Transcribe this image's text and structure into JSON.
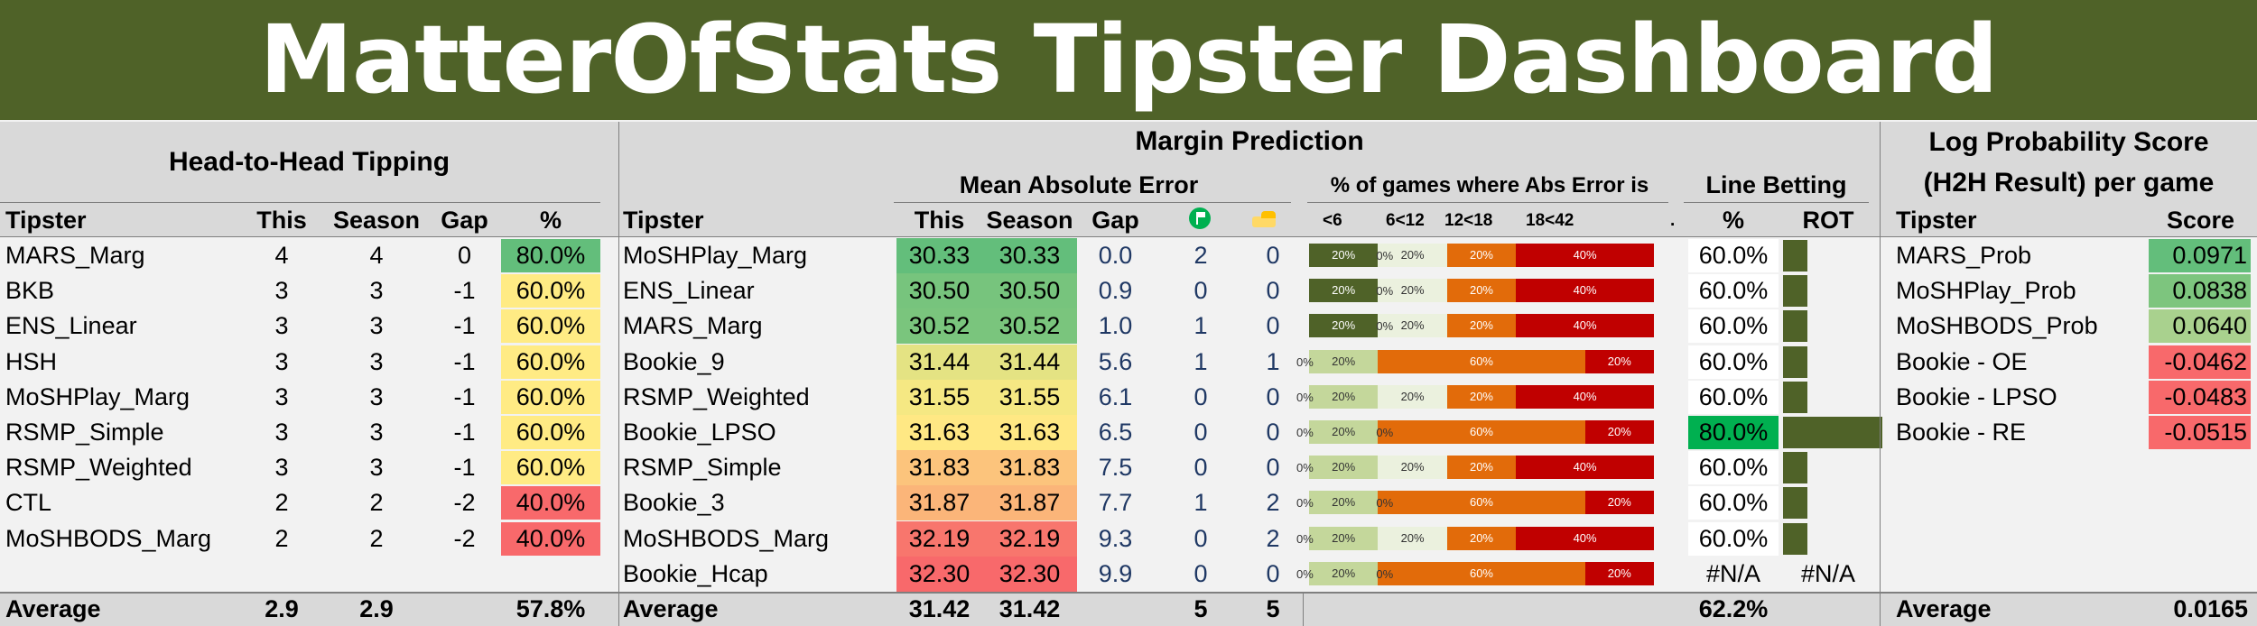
{
  "title": "MatterOfStats Tipster Dashboard",
  "h2h": {
    "heading": "Head-to-Head Tipping",
    "columns": [
      "Tipster",
      "This",
      "Season",
      "Gap",
      "%"
    ],
    "rows": [
      {
        "tipster": "MARS_Marg",
        "this": "4",
        "season": "4",
        "gap": "0",
        "pct": "80.0%",
        "pct_color": "#63be7b"
      },
      {
        "tipster": "BKB",
        "this": "3",
        "season": "3",
        "gap": "-1",
        "pct": "60.0%",
        "pct_color": "#ffeb84"
      },
      {
        "tipster": "ENS_Linear",
        "this": "3",
        "season": "3",
        "gap": "-1",
        "pct": "60.0%",
        "pct_color": "#ffeb84"
      },
      {
        "tipster": "HSH",
        "this": "3",
        "season": "3",
        "gap": "-1",
        "pct": "60.0%",
        "pct_color": "#ffeb84"
      },
      {
        "tipster": "MoSHPlay_Marg",
        "this": "3",
        "season": "3",
        "gap": "-1",
        "pct": "60.0%",
        "pct_color": "#ffeb84"
      },
      {
        "tipster": "RSMP_Simple",
        "this": "3",
        "season": "3",
        "gap": "-1",
        "pct": "60.0%",
        "pct_color": "#ffeb84"
      },
      {
        "tipster": "RSMP_Weighted",
        "this": "3",
        "season": "3",
        "gap": "-1",
        "pct": "60.0%",
        "pct_color": "#ffeb84"
      },
      {
        "tipster": "CTL",
        "this": "2",
        "season": "2",
        "gap": "-2",
        "pct": "40.0%",
        "pct_color": "#f8696b"
      },
      {
        "tipster": "MoSHBODS_Marg",
        "this": "2",
        "season": "2",
        "gap": "-2",
        "pct": "40.0%",
        "pct_color": "#f8696b"
      }
    ],
    "average": {
      "label": "Average",
      "this": "2.9",
      "season": "2.9",
      "pct": "57.8%"
    }
  },
  "margin": {
    "heading": "Margin Prediction",
    "mae_heading": "Mean Absolute Error",
    "abs_heading": "% of games where Abs Error is",
    "line_heading": "Line Betting",
    "columns": [
      "Tipster",
      "This",
      "Season",
      "Gap",
      "",
      "",
      "%",
      "ROT"
    ],
    "bucket_labels": [
      "<6",
      "6<12",
      "12<18",
      "18<42",
      "."
    ],
    "icon_names": [
      "flag-icon",
      "hand-icon"
    ],
    "bucket_colors": [
      "#4f6228",
      "#c4d79b",
      "#ebf1de",
      "#e26b0a",
      "#c00000"
    ],
    "rows": [
      {
        "tipster": "MoSHPlay_Marg",
        "this": "30.33",
        "season": "30.33",
        "gap": "0.0",
        "a": "2",
        "b": "0",
        "color": "#63be7b",
        "buckets": [
          20,
          0,
          20,
          20,
          40
        ],
        "labels": [
          "20%",
          "0%",
          "20%",
          "20%",
          "40%"
        ],
        "pct": "60.0%",
        "pct_color": "#ffffff",
        "rot": 0.6
      },
      {
        "tipster": "ENS_Linear",
        "this": "30.50",
        "season": "30.50",
        "gap": "0.9",
        "a": "0",
        "b": "0",
        "color": "#77c47d",
        "buckets": [
          20,
          0,
          20,
          20,
          40
        ],
        "labels": [
          "20%",
          "0%",
          "20%",
          "20%",
          "40%"
        ],
        "pct": "60.0%",
        "pct_color": "#ffffff",
        "rot": 0.6
      },
      {
        "tipster": "MARS_Marg",
        "this": "30.52",
        "season": "30.52",
        "gap": "1.0",
        "a": "1",
        "b": "0",
        "color": "#7ac57d",
        "buckets": [
          20,
          0,
          20,
          20,
          40
        ],
        "labels": [
          "20%",
          "0%",
          "20%",
          "20%",
          "40%"
        ],
        "pct": "60.0%",
        "pct_color": "#ffffff",
        "rot": 0.6
      },
      {
        "tipster": "Bookie_9",
        "this": "31.44",
        "season": "31.44",
        "gap": "5.6",
        "a": "1",
        "b": "1",
        "color": "#e4e383",
        "buckets": [
          0,
          20,
          0,
          60,
          20
        ],
        "labels": [
          "0%",
          "20%",
          "",
          "60%",
          "20%"
        ],
        "pct": "60.0%",
        "pct_color": "#ffffff",
        "rot": 0.6
      },
      {
        "tipster": "RSMP_Weighted",
        "this": "31.55",
        "season": "31.55",
        "gap": "6.1",
        "a": "0",
        "b": "0",
        "color": "#f5e883",
        "buckets": [
          0,
          20,
          20,
          20,
          40
        ],
        "labels": [
          "0%",
          "20%",
          "20%",
          "20%",
          "40%"
        ],
        "pct": "60.0%",
        "pct_color": "#ffffff",
        "rot": 0.6
      },
      {
        "tipster": "Bookie_LPSO",
        "this": "31.63",
        "season": "31.63",
        "gap": "6.5",
        "a": "0",
        "b": "0",
        "color": "#ffe884",
        "buckets": [
          0,
          20,
          0,
          60,
          20
        ],
        "labels": [
          "0%",
          "20%",
          "0%",
          "60%",
          "20%"
        ],
        "pct": "80.0%",
        "pct_color": "#00b050",
        "rot": 1.0
      },
      {
        "tipster": "RSMP_Simple",
        "this": "31.83",
        "season": "31.83",
        "gap": "7.5",
        "a": "0",
        "b": "0",
        "color": "#fcc47c",
        "buckets": [
          0,
          20,
          20,
          20,
          40
        ],
        "labels": [
          "0%",
          "20%",
          "20%",
          "20%",
          "40%"
        ],
        "pct": "60.0%",
        "pct_color": "#ffffff",
        "rot": 0.6
      },
      {
        "tipster": "Bookie_3",
        "this": "31.87",
        "season": "31.87",
        "gap": "7.7",
        "a": "1",
        "b": "2",
        "color": "#fbb579",
        "buckets": [
          0,
          20,
          0,
          60,
          20
        ],
        "labels": [
          "0%",
          "20%",
          "0%",
          "60%",
          "20%"
        ],
        "pct": "60.0%",
        "pct_color": "#ffffff",
        "rot": 0.6
      },
      {
        "tipster": "MoSHBODS_Marg",
        "this": "32.19",
        "season": "32.19",
        "gap": "9.3",
        "a": "0",
        "b": "2",
        "color": "#f8766d",
        "buckets": [
          0,
          20,
          20,
          20,
          40
        ],
        "labels": [
          "0%",
          "20%",
          "20%",
          "20%",
          "40%"
        ],
        "pct": "60.0%",
        "pct_color": "#ffffff",
        "rot": 0.6
      },
      {
        "tipster": "Bookie_Hcap",
        "this": "32.30",
        "season": "32.30",
        "gap": "9.9",
        "a": "0",
        "b": "0",
        "color": "#f8696b",
        "buckets": [
          0,
          20,
          0,
          60,
          20
        ],
        "labels": [
          "0%",
          "20%",
          "0%",
          "60%",
          "20%"
        ],
        "pct": "#N/A",
        "pct_color": "#f2f2f2",
        "rot_text": "#N/A",
        "rot": 0
      }
    ],
    "average": {
      "label": "Average",
      "this": "31.42",
      "season": "31.42",
      "a": "5",
      "b": "5",
      "pct": "62.2%"
    }
  },
  "logprob": {
    "heading1": "Log Probability Score",
    "heading2": "(H2H Result) per game",
    "columns": [
      "Tipster",
      "Score"
    ],
    "rows": [
      {
        "tipster": "MARS_Prob",
        "score": "0.0971",
        "color": "#63be7b"
      },
      {
        "tipster": "MoSHPlay_Prob",
        "score": "0.0838",
        "color": "#7dc57e"
      },
      {
        "tipster": "MoSHBODS_Prob",
        "score": "0.0640",
        "color": "#a9d18e"
      },
      {
        "tipster": "Bookie - OE",
        "score": "-0.0462",
        "color": "#f8696b"
      },
      {
        "tipster": "Bookie - LPSO",
        "score": "-0.0483",
        "color": "#f8696b"
      },
      {
        "tipster": "Bookie - RE",
        "score": "-0.0515",
        "color": "#f8696b"
      }
    ],
    "average": {
      "label": "Average",
      "score": "0.0165"
    }
  }
}
